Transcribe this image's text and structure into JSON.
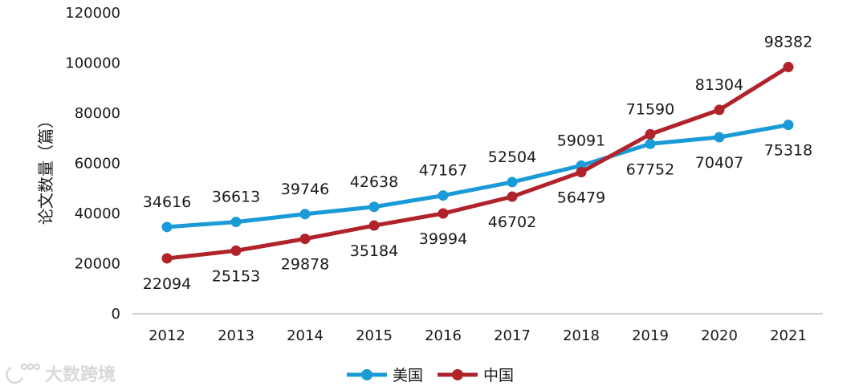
{
  "chart_data": {
    "type": "line",
    "title": "",
    "xlabel": "",
    "ylabel": "论文数量（篇）",
    "categories": [
      "2012",
      "2013",
      "2014",
      "2015",
      "2016",
      "2017",
      "2018",
      "2019",
      "2020",
      "2021"
    ],
    "series": [
      {
        "name": "美国",
        "color": "#1a9ad6",
        "values": [
          34616,
          36613,
          39746,
          42638,
          47167,
          52504,
          59091,
          67752,
          70407,
          75318
        ],
        "label_position": [
          "above",
          "above",
          "above",
          "above",
          "above",
          "above",
          "above",
          "below",
          "below",
          "below"
        ]
      },
      {
        "name": "中国",
        "color": "#b0232a",
        "values": [
          22094,
          25153,
          29878,
          35184,
          39994,
          46702,
          56479,
          71590,
          81304,
          98382
        ],
        "label_position": [
          "below",
          "below",
          "below",
          "below",
          "below",
          "below",
          "below",
          "above",
          "above",
          "above"
        ]
      }
    ],
    "yticks": [
      "0",
      "20000",
      "40000",
      "60000",
      "80000",
      "100000",
      "120000"
    ],
    "ylim": [
      0,
      120000
    ],
    "grid": false,
    "legend_position": "bottom-center"
  },
  "watermark": {
    "text": "大数跨境",
    "icon": "brand-logo-icon"
  }
}
